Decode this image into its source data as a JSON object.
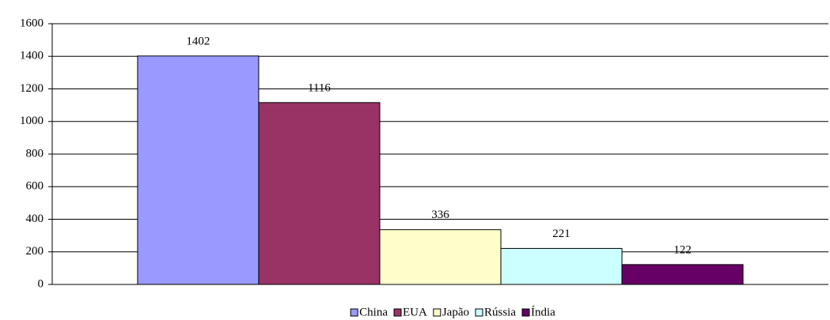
{
  "chart_data": {
    "type": "bar",
    "categories": [
      null
    ],
    "series": [
      {
        "name": "China",
        "color": "#9999ff",
        "values": [
          1402
        ]
      },
      {
        "name": "EUA",
        "color": "#993366",
        "values": [
          1116
        ]
      },
      {
        "name": "Japão",
        "color": "#ffffcc",
        "values": [
          336
        ]
      },
      {
        "name": "Rússia",
        "color": "#ccffff",
        "values": [
          221
        ]
      },
      {
        "name": "Índia",
        "color": "#660066",
        "values": [
          122
        ]
      }
    ],
    "ylim": [
      0,
      1600
    ],
    "yticks": [
      0,
      200,
      400,
      600,
      800,
      1000,
      1200,
      1400,
      1600
    ],
    "grid": true,
    "legend": "bottom"
  }
}
